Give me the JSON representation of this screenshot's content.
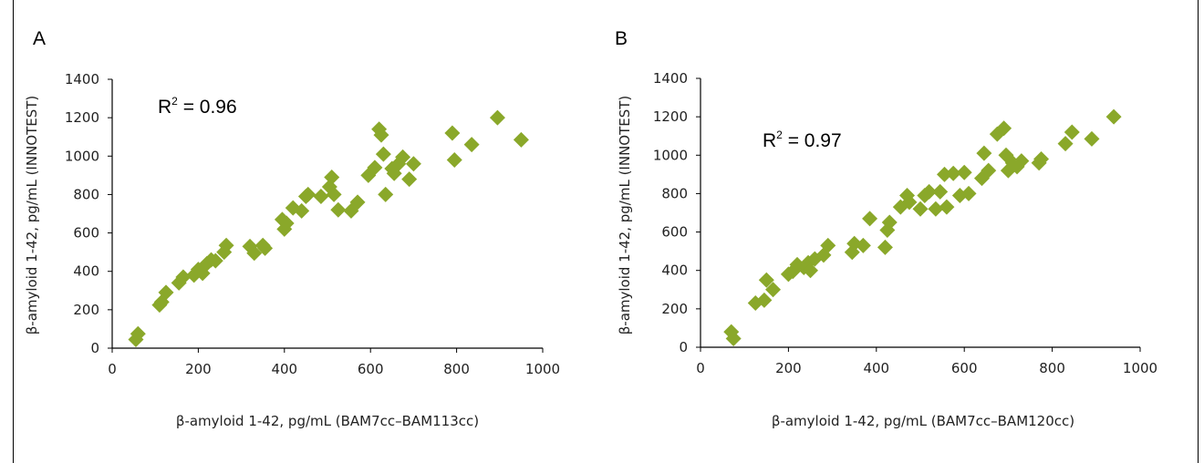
{
  "colors": {
    "marker": "#8aa82a",
    "axis": "#000000"
  },
  "chart_data": [
    {
      "type": "scatter",
      "panel_label": "A",
      "annotation": {
        "base": "R",
        "sup": "2",
        "value": " = 0.96"
      },
      "xlabel": "β-amyloid 1-42, pg/mL (BAM7cc–BAM113cc)",
      "ylabel": "β-amyloid 1-42, pg/mL (INNOTEST)",
      "xlim": [
        0,
        1000
      ],
      "ylim": [
        0,
        1400
      ],
      "xticks": [
        0,
        200,
        400,
        600,
        800,
        1000
      ],
      "yticks": [
        0,
        200,
        400,
        600,
        800,
        1000,
        1200,
        1400
      ],
      "points": [
        [
          55,
          45
        ],
        [
          60,
          75
        ],
        [
          110,
          225
        ],
        [
          115,
          240
        ],
        [
          125,
          290
        ],
        [
          155,
          340
        ],
        [
          165,
          370
        ],
        [
          190,
          380
        ],
        [
          200,
          410
        ],
        [
          210,
          390
        ],
        [
          220,
          440
        ],
        [
          230,
          460
        ],
        [
          240,
          455
        ],
        [
          260,
          500
        ],
        [
          265,
          535
        ],
        [
          320,
          530
        ],
        [
          330,
          495
        ],
        [
          350,
          535
        ],
        [
          355,
          520
        ],
        [
          395,
          670
        ],
        [
          400,
          620
        ],
        [
          405,
          650
        ],
        [
          420,
          730
        ],
        [
          440,
          715
        ],
        [
          450,
          790
        ],
        [
          455,
          800
        ],
        [
          485,
          790
        ],
        [
          505,
          840
        ],
        [
          510,
          890
        ],
        [
          515,
          800
        ],
        [
          525,
          720
        ],
        [
          555,
          715
        ],
        [
          570,
          760
        ],
        [
          595,
          900
        ],
        [
          610,
          940
        ],
        [
          620,
          1140
        ],
        [
          625,
          1110
        ],
        [
          630,
          1010
        ],
        [
          635,
          800
        ],
        [
          650,
          935
        ],
        [
          655,
          910
        ],
        [
          665,
          960
        ],
        [
          675,
          995
        ],
        [
          690,
          880
        ],
        [
          700,
          960
        ],
        [
          790,
          1120
        ],
        [
          795,
          980
        ],
        [
          835,
          1060
        ],
        [
          895,
          1200
        ],
        [
          950,
          1085
        ]
      ]
    },
    {
      "type": "scatter",
      "panel_label": "B",
      "annotation": {
        "base": "R",
        "sup": "2",
        "value": " = 0.97"
      },
      "xlabel": "β-amyloid 1-42, pg/mL (BAM7cc–BAM120cc)",
      "ylabel": "β-amyloid 1-42, pg/mL (INNOTEST)",
      "xlim": [
        0,
        1000
      ],
      "ylim": [
        0,
        1400
      ],
      "xticks": [
        0,
        200,
        400,
        600,
        800,
        1000
      ],
      "yticks": [
        0,
        200,
        400,
        600,
        800,
        1000,
        1200,
        1400
      ],
      "points": [
        [
          70,
          80
        ],
        [
          75,
          45
        ],
        [
          125,
          230
        ],
        [
          145,
          245
        ],
        [
          150,
          350
        ],
        [
          165,
          300
        ],
        [
          200,
          380
        ],
        [
          210,
          395
        ],
        [
          220,
          430
        ],
        [
          235,
          415
        ],
        [
          245,
          440
        ],
        [
          250,
          400
        ],
        [
          260,
          460
        ],
        [
          280,
          480
        ],
        [
          290,
          530
        ],
        [
          345,
          495
        ],
        [
          350,
          540
        ],
        [
          370,
          530
        ],
        [
          385,
          670
        ],
        [
          420,
          520
        ],
        [
          425,
          610
        ],
        [
          430,
          650
        ],
        [
          455,
          730
        ],
        [
          470,
          790
        ],
        [
          475,
          755
        ],
        [
          500,
          720
        ],
        [
          510,
          790
        ],
        [
          520,
          810
        ],
        [
          535,
          720
        ],
        [
          545,
          810
        ],
        [
          555,
          900
        ],
        [
          560,
          730
        ],
        [
          575,
          905
        ],
        [
          590,
          790
        ],
        [
          600,
          910
        ],
        [
          610,
          800
        ],
        [
          640,
          880
        ],
        [
          645,
          1010
        ],
        [
          655,
          920
        ],
        [
          675,
          1110
        ],
        [
          690,
          1140
        ],
        [
          695,
          1000
        ],
        [
          700,
          920
        ],
        [
          710,
          960
        ],
        [
          720,
          940
        ],
        [
          730,
          970
        ],
        [
          770,
          960
        ],
        [
          775,
          980
        ],
        [
          830,
          1060
        ],
        [
          845,
          1120
        ],
        [
          890,
          1085
        ],
        [
          940,
          1200
        ]
      ]
    }
  ]
}
